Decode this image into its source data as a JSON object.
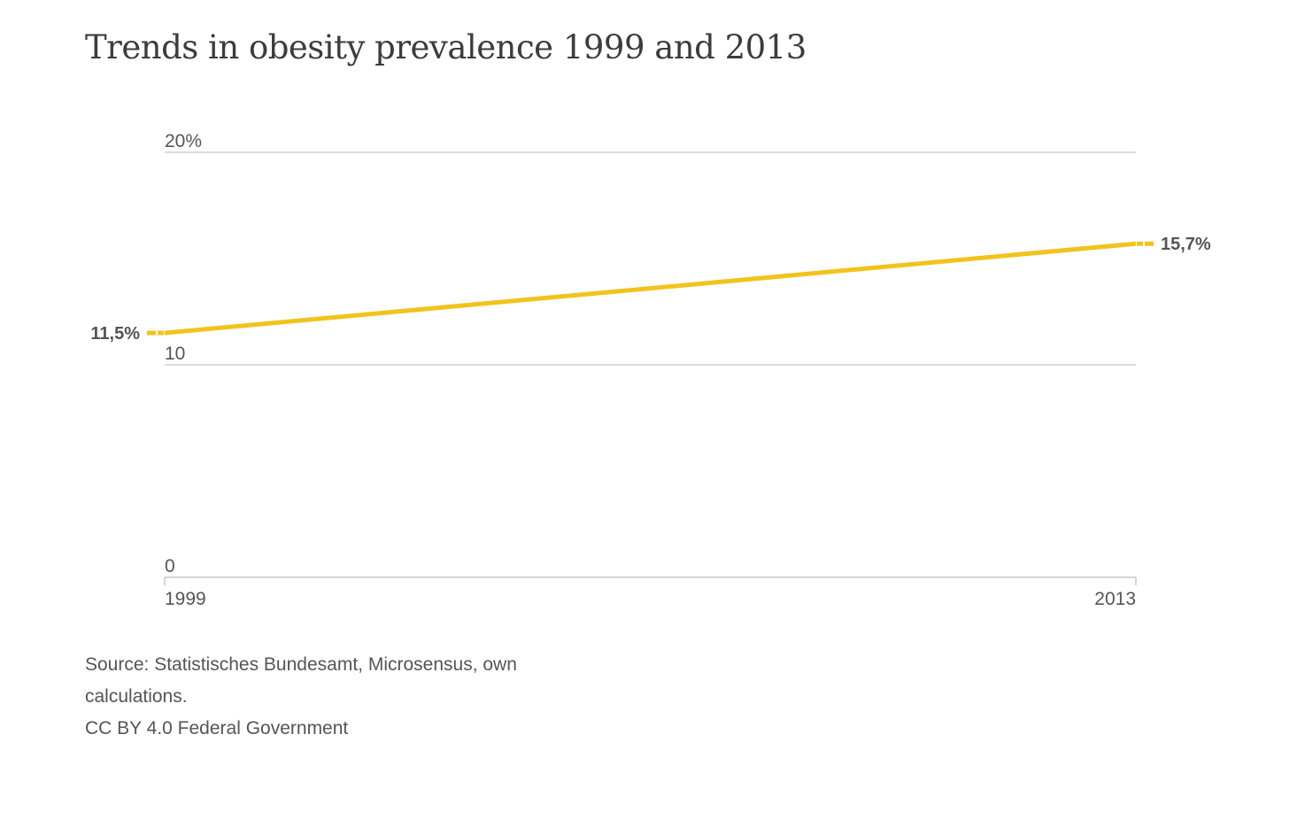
{
  "chart_data": {
    "type": "line",
    "title": "Trends in obesity prevalence 1999 and 2013",
    "x": [
      "1999",
      "2013"
    ],
    "series": [
      {
        "values": [
          11.5,
          15.7
        ],
        "labels": [
          "11,5%",
          "15,7%"
        ],
        "color": "#f2c31c"
      }
    ],
    "ylim": [
      0,
      20
    ],
    "yticks": [
      {
        "value": 0,
        "label": "0"
      },
      {
        "value": 10,
        "label": "10"
      },
      {
        "value": 20,
        "label": "20%"
      }
    ],
    "xticks": [
      "1999",
      "2013"
    ],
    "grid": true,
    "legend": "none"
  },
  "footer": {
    "source_line_1": "Source: Statistisches Bundesamt, Microsensus, own",
    "source_line_2": "calculations.",
    "license": "CC BY 4.0 Federal Government"
  },
  "colors": {
    "line": "#f2c31c",
    "grid": "#c8c8c8",
    "text": "#555555"
  }
}
